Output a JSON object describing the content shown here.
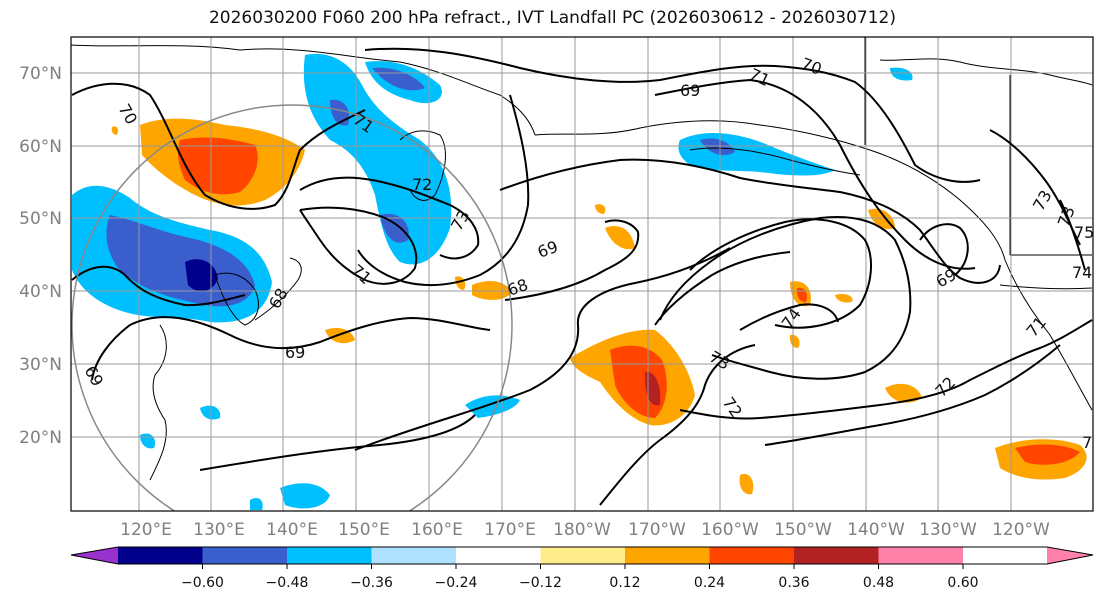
{
  "title": "2026030200 F060 200 hPa refract., IVT Landfall PC (2026030612 - 2026030712)",
  "map": {
    "lat_labels": [
      "70°N",
      "60°N",
      "50°N",
      "40°N",
      "30°N",
      "20°N"
    ],
    "lon_labels": [
      "120°E",
      "130°E",
      "140°E",
      "150°E",
      "160°E",
      "170°E",
      "180°W",
      "170°W",
      "160°W",
      "150°W",
      "140°W",
      "130°W",
      "120°W"
    ],
    "contour_labels": [
      "70",
      "71",
      "69",
      "70",
      "71",
      "72",
      "73",
      "73",
      "69",
      "68",
      "71",
      "68",
      "69",
      "69",
      "73",
      "72",
      "74",
      "69",
      "72",
      "71",
      "73",
      "74",
      "75",
      "7"
    ]
  },
  "colorbar": {
    "colors": [
      "#9932cc",
      "#00008b",
      "#3a5fcd",
      "#00bfff",
      "#b0e2ff",
      "#ffffff",
      "#ffec8b",
      "#ffa500",
      "#ff4500",
      "#b22222",
      "#ff82ab"
    ],
    "tick_labels": [
      "−0.60",
      "−0.48",
      "−0.36",
      "−0.24",
      "−0.12",
      "0.12",
      "0.24",
      "0.36",
      "0.48",
      "0.60"
    ]
  }
}
